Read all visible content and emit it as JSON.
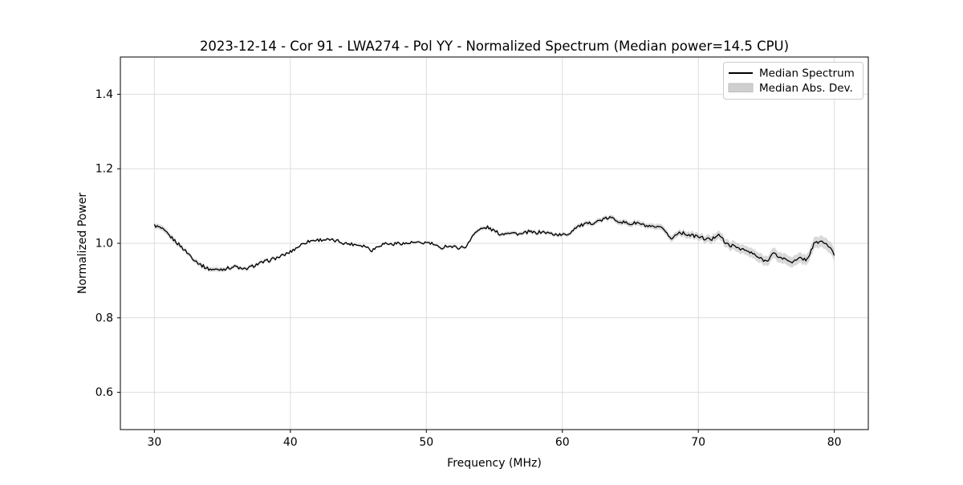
{
  "chart_data": {
    "type": "line",
    "title": "2023-12-14 - Cor 91 - LWA274 - Pol YY - Normalized Spectrum (Median power=14.5 CPU)",
    "xlabel": "Frequency (MHz)",
    "ylabel": "Normalized Power",
    "xlim": [
      27.5,
      82.5
    ],
    "ylim": [
      0.5,
      1.5
    ],
    "xticks": [
      30,
      40,
      50,
      60,
      70,
      80
    ],
    "yticks": [
      0.6,
      0.8,
      1.0,
      1.2,
      1.4
    ],
    "grid": true,
    "background": "#ffffff",
    "legend": {
      "position": "upper right",
      "entries": [
        {
          "label": "Median Spectrum",
          "type": "line",
          "color": "#000000"
        },
        {
          "label": "Median Abs. Dev.",
          "type": "patch",
          "color": "#c4c4c4"
        }
      ]
    },
    "x_start": 30.0,
    "x_step": 0.5,
    "series": [
      {
        "name": "Median Spectrum",
        "type": "line",
        "color": "#000000",
        "values": [
          1.048,
          1.04,
          1.024,
          1.007,
          0.99,
          0.972,
          0.954,
          0.94,
          0.931,
          0.929,
          0.931,
          0.934,
          0.938,
          0.929,
          0.935,
          0.943,
          0.949,
          0.955,
          0.961,
          0.968,
          0.977,
          0.989,
          1.001,
          1.007,
          1.009,
          1.01,
          1.008,
          1.006,
          1.0,
          0.998,
          0.996,
          0.993,
          0.981,
          0.994,
          1.0,
          0.997,
          1.001,
          0.999,
          1.002,
          1.0,
          1.002,
          0.998,
          0.986,
          0.994,
          0.99,
          0.988,
          0.993,
          1.028,
          1.038,
          1.043,
          1.033,
          1.024,
          1.03,
          1.027,
          1.024,
          1.031,
          1.028,
          1.031,
          1.027,
          1.024,
          1.022,
          1.026,
          1.044,
          1.049,
          1.053,
          1.058,
          1.064,
          1.069,
          1.062,
          1.056,
          1.052,
          1.055,
          1.048,
          1.043,
          1.042,
          1.038,
          1.01,
          1.03,
          1.026,
          1.021,
          1.018,
          1.012,
          1.01,
          1.027,
          0.999,
          0.993,
          0.988,
          0.98,
          0.972,
          0.96,
          0.952,
          0.973,
          0.962,
          0.956,
          0.95,
          0.96,
          0.956,
          0.998,
          1.006,
          0.996,
          0.97
        ]
      },
      {
        "name": "Median Abs. Dev.",
        "type": "band",
        "color": "#c4c4c4",
        "half_widths": [
          0.007,
          0.007,
          0.007,
          0.007,
          0.006,
          0.006,
          0.006,
          0.006,
          0.006,
          0.006,
          0.006,
          0.005,
          0.005,
          0.005,
          0.005,
          0.005,
          0.005,
          0.005,
          0.004,
          0.004,
          0.003,
          0.003,
          0.003,
          0.003,
          0.003,
          0.003,
          0.003,
          0.003,
          0.003,
          0.003,
          0.003,
          0.003,
          0.003,
          0.003,
          0.003,
          0.003,
          0.003,
          0.003,
          0.003,
          0.003,
          0.003,
          0.003,
          0.004,
          0.004,
          0.004,
          0.004,
          0.004,
          0.005,
          0.005,
          0.005,
          0.005,
          0.005,
          0.005,
          0.005,
          0.005,
          0.005,
          0.005,
          0.005,
          0.005,
          0.005,
          0.005,
          0.005,
          0.006,
          0.006,
          0.006,
          0.006,
          0.006,
          0.006,
          0.007,
          0.007,
          0.007,
          0.007,
          0.007,
          0.007,
          0.008,
          0.008,
          0.008,
          0.008,
          0.009,
          0.009,
          0.009,
          0.009,
          0.011,
          0.011,
          0.011,
          0.012,
          0.012,
          0.012,
          0.013,
          0.013,
          0.013,
          0.014,
          0.014,
          0.014,
          0.014,
          0.014,
          0.014,
          0.015,
          0.015,
          0.016,
          0.016
        ]
      }
    ],
    "style": {
      "jitter_amplitude": 0.0045,
      "grid_color": "#dddddd",
      "line_color": "#000000",
      "band_color": "#c4c4c4"
    }
  }
}
